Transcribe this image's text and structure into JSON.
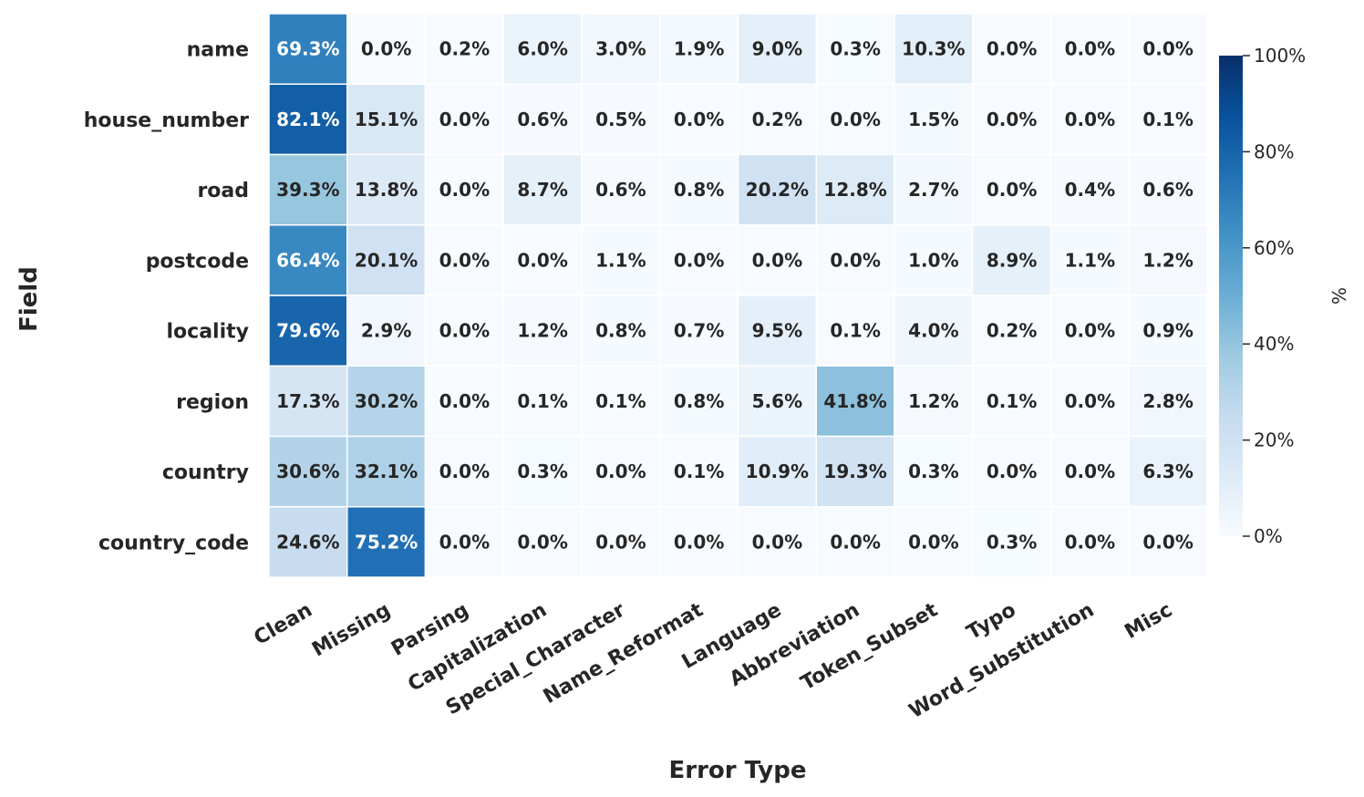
{
  "chart_data": {
    "type": "heatmap",
    "title": "",
    "xlabel": "Error Type",
    "ylabel": "Field",
    "rows": [
      "name",
      "house_number",
      "road",
      "postcode",
      "locality",
      "region",
      "country",
      "country_code"
    ],
    "columns": [
      "Clean",
      "Missing",
      "Parsing",
      "Capitalization",
      "Special_Character",
      "Name_Reformat",
      "Language",
      "Abbreviation",
      "Token_Subset",
      "Typo",
      "Word_Substitution",
      "Misc"
    ],
    "values": [
      [
        69.3,
        0.0,
        0.2,
        6.0,
        3.0,
        1.9,
        9.0,
        0.3,
        10.3,
        0.0,
        0.0,
        0.0
      ],
      [
        82.1,
        15.1,
        0.0,
        0.6,
        0.5,
        0.0,
        0.2,
        0.0,
        1.5,
        0.0,
        0.0,
        0.1
      ],
      [
        39.3,
        13.8,
        0.0,
        8.7,
        0.6,
        0.8,
        20.2,
        12.8,
        2.7,
        0.0,
        0.4,
        0.6
      ],
      [
        66.4,
        20.1,
        0.0,
        0.0,
        1.1,
        0.0,
        0.0,
        0.0,
        1.0,
        8.9,
        1.1,
        1.2
      ],
      [
        79.6,
        2.9,
        0.0,
        1.2,
        0.8,
        0.7,
        9.5,
        0.1,
        4.0,
        0.2,
        0.0,
        0.9
      ],
      [
        17.3,
        30.2,
        0.0,
        0.1,
        0.1,
        0.8,
        5.6,
        41.8,
        1.2,
        0.1,
        0.0,
        2.8
      ],
      [
        30.6,
        32.1,
        0.0,
        0.3,
        0.0,
        0.1,
        10.9,
        19.3,
        0.3,
        0.0,
        0.0,
        6.3
      ],
      [
        24.6,
        75.2,
        0.0,
        0.0,
        0.0,
        0.0,
        0.0,
        0.0,
        0.0,
        0.3,
        0.0,
        0.0
      ]
    ],
    "value_suffix": "%",
    "colormap": "Blues",
    "vmin": 0,
    "vmax": 100,
    "colorbar": {
      "label": "%",
      "ticks": [
        0,
        20,
        40,
        60,
        80,
        100
      ],
      "tick_labels": [
        "0%",
        "20%",
        "40%",
        "60%",
        "80%",
        "100%"
      ]
    },
    "colors": {
      "dark_text": "#262626",
      "light_text": "#ffffff",
      "grid_line": "#ffffff"
    }
  }
}
